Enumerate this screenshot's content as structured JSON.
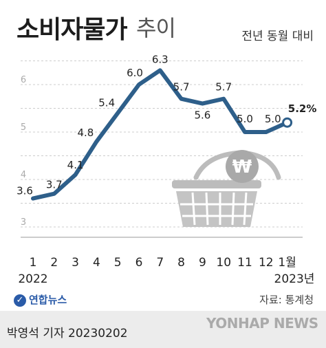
{
  "header": {
    "title_main": "소비자물가",
    "title_sub": "추이",
    "unit_note": "전년 동월 대비"
  },
  "chart_data": {
    "type": "line",
    "categories": [
      "1",
      "2",
      "3",
      "4",
      "5",
      "6",
      "7",
      "8",
      "9",
      "10",
      "11",
      "12",
      "1월"
    ],
    "values": [
      3.6,
      3.7,
      4.1,
      4.8,
      5.4,
      6.0,
      6.3,
      5.7,
      5.6,
      5.7,
      5.0,
      5.0,
      5.2
    ],
    "value_labels": [
      "3.6",
      "3.7",
      "4.1",
      "4.8",
      "5.4",
      "6.0",
      "6.3",
      "5.7",
      "5.6",
      "5.7",
      "5.0",
      "5.0",
      "5.2%"
    ],
    "year_labels": [
      "2022",
      "2023년"
    ],
    "yticks": [
      "3",
      "4",
      "5",
      "6"
    ],
    "ylim": [
      3,
      6.6
    ],
    "grid": true,
    "line_color": "#2e5f8a",
    "grid_color": "#cccccc"
  },
  "footer": {
    "logo": "연합뉴스",
    "source": "자료: 통계청",
    "byline": "박영석 기자  20230202",
    "watermark": "YONHAP NEWS"
  }
}
